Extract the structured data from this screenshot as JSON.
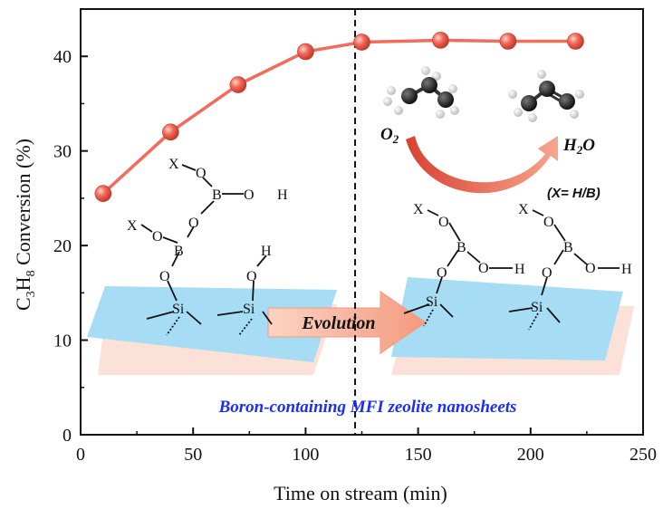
{
  "chart_data": {
    "type": "line",
    "xlabel": "Time on stream (min)",
    "ylabel_main": "C",
    "ylabel_sub1": "3",
    "ylabel_mid": "H",
    "ylabel_sub2": "8",
    "ylabel_tail": " Conversion (%)",
    "xlim": [
      0,
      250
    ],
    "ylim": [
      0,
      45
    ],
    "x_ticks": [
      0,
      50,
      100,
      150,
      200,
      250
    ],
    "y_ticks": [
      0,
      10,
      20,
      30,
      40
    ],
    "grid": false,
    "series": [
      {
        "color": "#f26b5b",
        "x": [
          10,
          40,
          70,
          100,
          125,
          160,
          190,
          220
        ],
        "y": [
          25.5,
          32.0,
          37.0,
          40.5,
          41.5,
          41.7,
          41.6,
          41.6
        ]
      }
    ],
    "divider_x": 122,
    "annotations": {
      "evolution": "Evolution",
      "caption": "Boron-containing MFI zeolite nanosheets",
      "o2_main": "O",
      "o2_sub": "2",
      "h2o_h": "H",
      "h2o_sub": "2",
      "h2o_o": "O",
      "x_note": "(X= H/B)",
      "atom_x": "X",
      "atom_o": "O",
      "atom_b": "B",
      "atom_h": "H",
      "atom_si": "Si"
    }
  },
  "colors": {
    "series": "#f26b5b",
    "slab": "#a7dcf5",
    "slab_shadow": "#fbe1d8",
    "arrow": "#f5a58e",
    "curved_arrow": "#e25642",
    "caption": "#1b2cff"
  }
}
